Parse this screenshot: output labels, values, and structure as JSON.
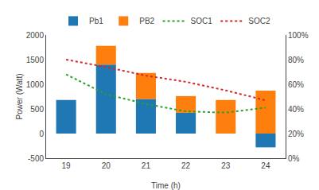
{
  "chart_data": {
    "type": "bar",
    "stacked": true,
    "x": [
      19,
      20,
      21,
      22,
      23,
      24
    ],
    "xlabel": "Time (h)",
    "ylabel": "Power (Watt)",
    "xlim": [
      18.5,
      24.5
    ],
    "xticks": [
      19,
      20,
      21,
      22,
      23,
      24
    ],
    "ylim": [
      -500,
      2000
    ],
    "yticks": [
      -500,
      0,
      500,
      1000,
      1500,
      2000
    ],
    "y2lim": [
      0,
      1
    ],
    "y2ticks": [
      {
        "value": 0.0,
        "label": "0%"
      },
      {
        "value": 0.2,
        "label": "20%"
      },
      {
        "value": 0.4,
        "label": "40%"
      },
      {
        "value": 0.6,
        "label": "60%"
      },
      {
        "value": 0.8,
        "label": "80%"
      },
      {
        "value": 1.0,
        "label": "100%"
      }
    ],
    "grid": false,
    "legend": "top",
    "series": [
      {
        "name": "Pb1",
        "values": [
          680,
          1400,
          700,
          420,
          0,
          -280
        ]
      },
      {
        "name": "PB2",
        "values": [
          0,
          380,
          530,
          340,
          680,
          870
        ]
      },
      {
        "name": "SOC1",
        "type": "line",
        "axis": "y2",
        "line_style": "dotted",
        "values": [
          0.68,
          0.52,
          0.44,
          0.38,
          0.37,
          0.41
        ]
      },
      {
        "name": "SOC2",
        "type": "line",
        "axis": "y2",
        "line_style": "dotted",
        "values": [
          0.8,
          0.74,
          0.67,
          0.62,
          0.55,
          0.47
        ]
      }
    ]
  }
}
